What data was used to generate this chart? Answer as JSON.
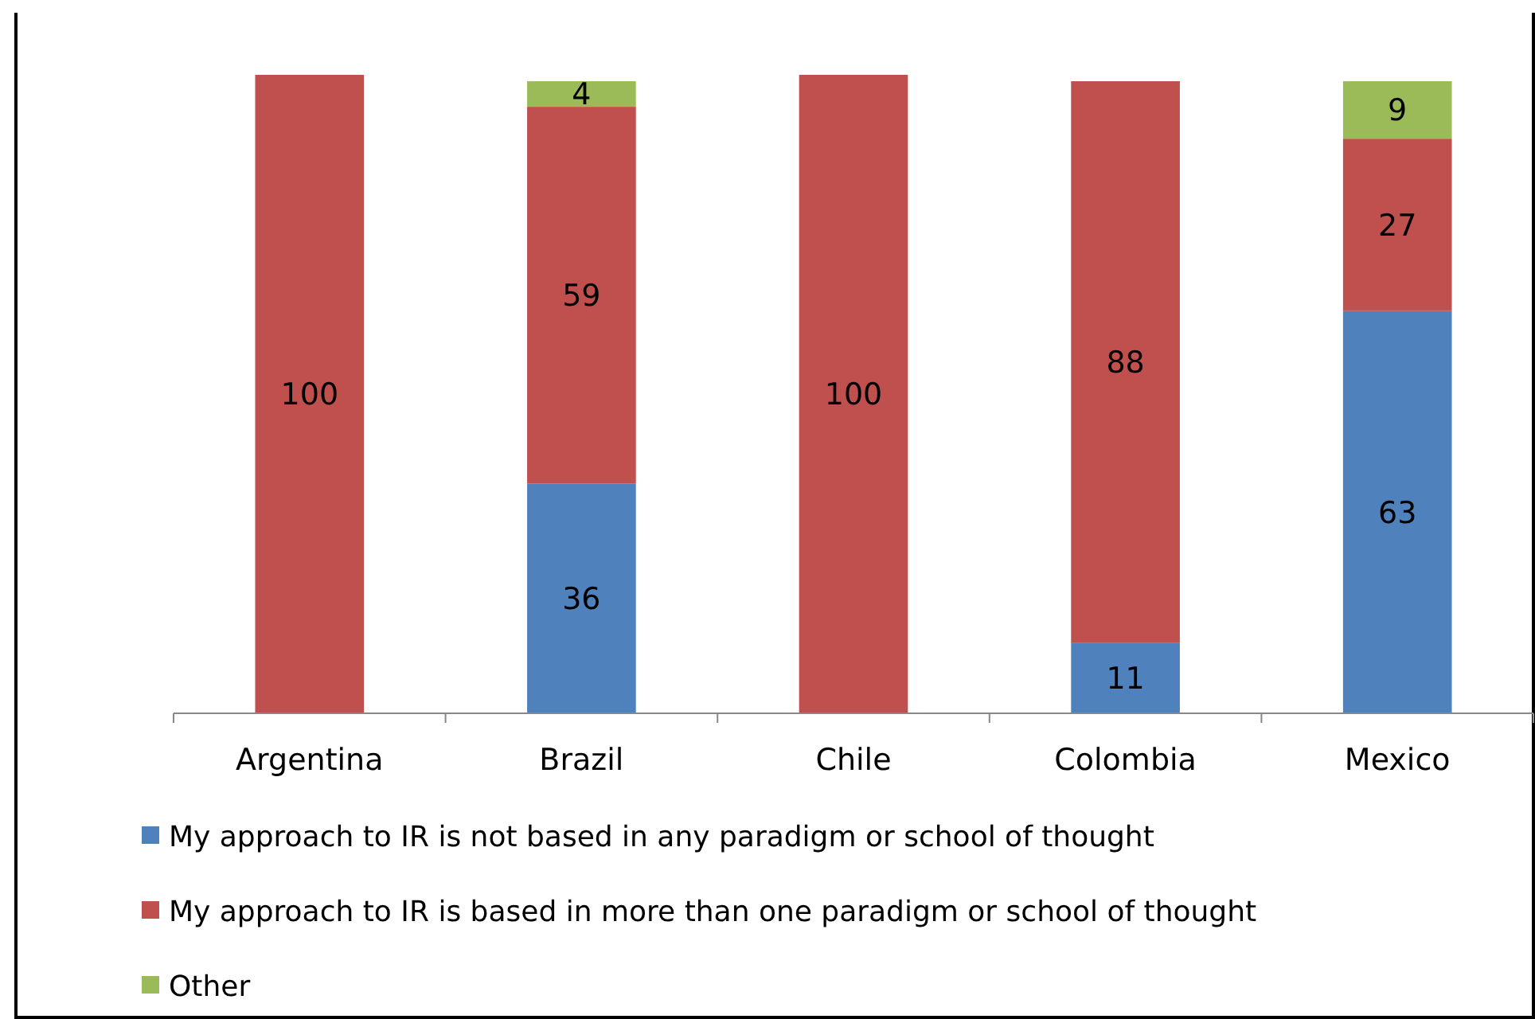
{
  "chart_data": {
    "type": "bar",
    "stacked": true,
    "data_labels": true,
    "legend": "bottom",
    "grid": false,
    "categories": [
      "Argentina",
      "Brazil",
      "Chile",
      "Colombia",
      "Mexico"
    ],
    "series": [
      {
        "name": "My approach to IR is not based in any paradigm or school of thought",
        "color": "#4f81bd",
        "values": [
          null,
          36,
          null,
          11,
          63
        ]
      },
      {
        "name": "My approach to IR is based in more than one paradigm or school of thought",
        "color": "#c0504d",
        "values": [
          100,
          59,
          100,
          88,
          27
        ]
      },
      {
        "name": "Other",
        "color": "#9bbb59",
        "values": [
          null,
          4,
          null,
          null,
          9
        ]
      }
    ]
  }
}
